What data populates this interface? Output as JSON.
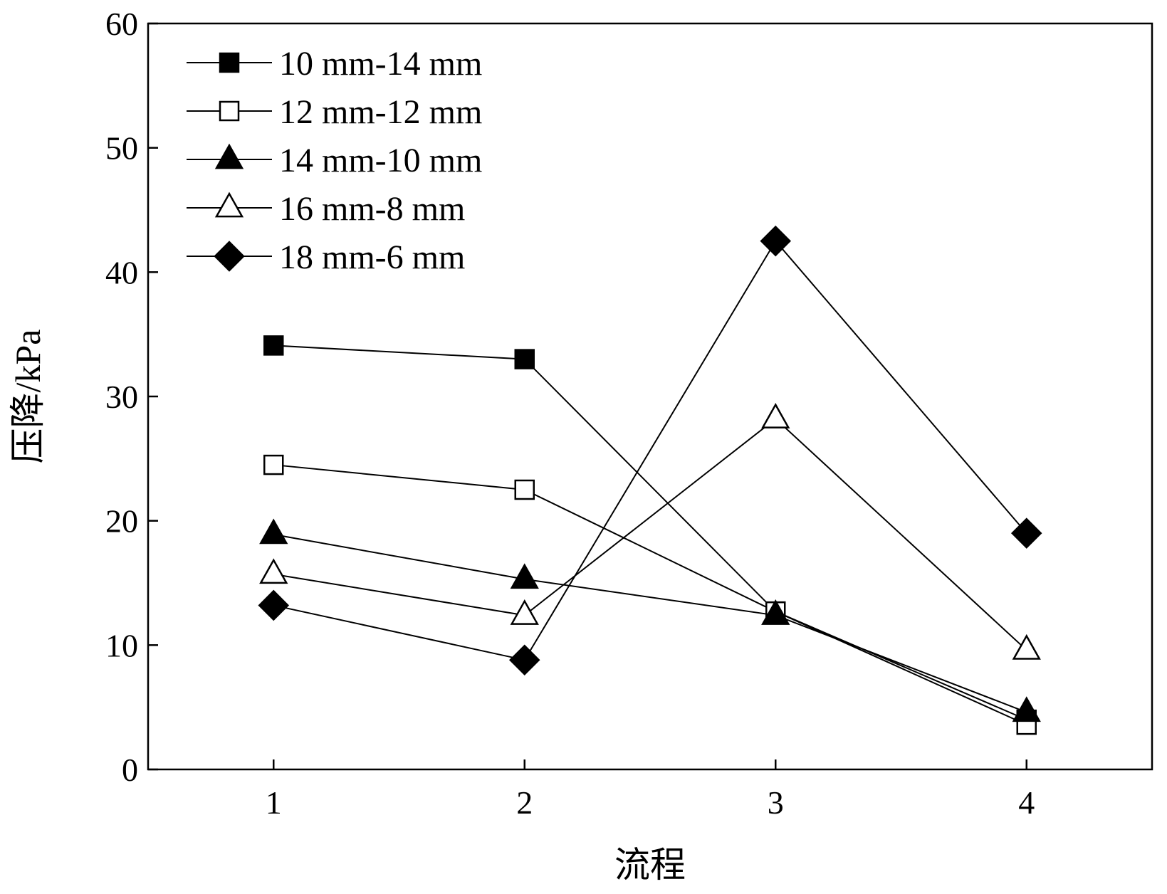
{
  "chart_data": {
    "type": "line",
    "title": "",
    "xlabel": "流程",
    "ylabel": "压降/kPa",
    "x": [
      1,
      2,
      3,
      4
    ],
    "xlim": [
      0.5,
      4.5
    ],
    "ylim": [
      0,
      60
    ],
    "xticks": [
      "1",
      "2",
      "3",
      "4"
    ],
    "yticks": [
      "0",
      "10",
      "20",
      "30",
      "40",
      "50",
      "60"
    ],
    "grid": false,
    "legend_position": "top-left",
    "series": [
      {
        "name": "10 mm-14 mm",
        "marker": "square-filled",
        "values": [
          34.1,
          33.0,
          12.7,
          4.0
        ]
      },
      {
        "name": "12 mm-12 mm",
        "marker": "square-open",
        "values": [
          24.5,
          22.5,
          12.7,
          3.6
        ]
      },
      {
        "name": "14 mm-10 mm",
        "marker": "triangle-filled",
        "values": [
          18.9,
          15.3,
          12.4,
          4.6
        ]
      },
      {
        "name": "16 mm-8 mm",
        "marker": "triangle-open",
        "values": [
          15.7,
          12.4,
          28.2,
          9.6
        ]
      },
      {
        "name": "18 mm-6 mm",
        "marker": "diamond-filled",
        "values": [
          13.2,
          8.8,
          42.5,
          19.0
        ]
      }
    ],
    "line_color": "#000000",
    "marker_fill_open": "#ffffff"
  }
}
